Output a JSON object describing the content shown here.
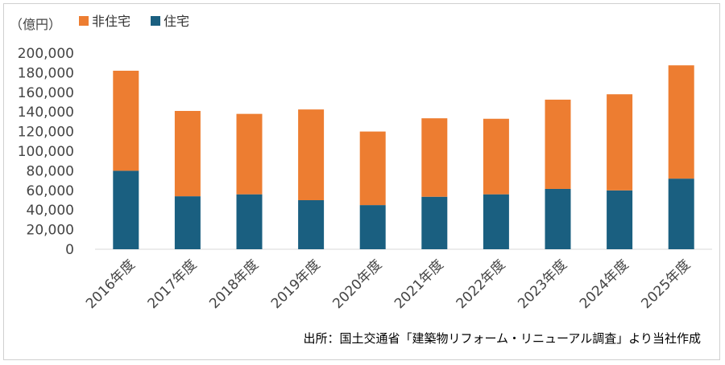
{
  "chart_data": {
    "type": "bar",
    "stacked": true,
    "unit_label": "（億円）",
    "categories": [
      "2016年度",
      "2017年度",
      "2018年度",
      "2019年度",
      "2020年度",
      "2021年度",
      "2022年度",
      "2023年度",
      "2024年度",
      "2025年度"
    ],
    "series": [
      {
        "name": "住宅",
        "color": "#1a5f80",
        "values": [
          80000,
          54000,
          56000,
          50000,
          45000,
          53500,
          56000,
          61500,
          60000,
          72000
        ]
      },
      {
        "name": "非住宅",
        "color": "#ed7d31",
        "values": [
          102000,
          87000,
          82000,
          92500,
          75000,
          80000,
          77000,
          91000,
          98000,
          115500
        ]
      }
    ],
    "legend_order": [
      "非住宅",
      "住宅"
    ],
    "legend_position": "top-left",
    "yticks": [
      "0",
      "20,000",
      "40,000",
      "60,000",
      "80,000",
      "100,000",
      "120,000",
      "140,000",
      "160,000",
      "180,000",
      "200,000"
    ],
    "ylim": [
      0,
      200000
    ],
    "grid": false
  },
  "source_note": "出所：国土交通省「建築物リフォーム・リニューアル調査」より当社作成"
}
